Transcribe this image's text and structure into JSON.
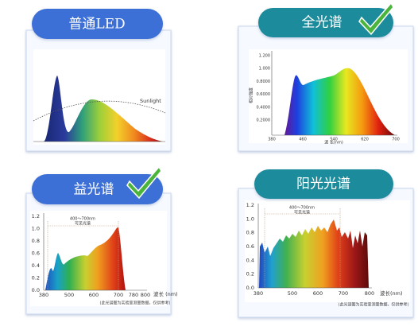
{
  "panels": [
    {
      "title": "普通LED",
      "legend_label": "Sunlight"
    },
    {
      "title": "全光谱",
      "y_axis_title": "相对强度",
      "x_axis_title": "波 长(nm)",
      "yticks": [
        "1.200",
        "1.000",
        "0.8000",
        "0.6000",
        "0.4000",
        "0.2000"
      ],
      "xticks": [
        "380",
        "460",
        "540",
        "620",
        "700"
      ]
    },
    {
      "title": "益光谱",
      "x_axis_title": "波长 (nm)",
      "annotation": "400～700nm",
      "annotation_sub": "可见光谱",
      "note": "(此光谱图为实验室测量数据，仅供参考)",
      "yticks": [
        "1.2",
        "1.0",
        "0.8",
        "0.6",
        "0.4",
        "0.2",
        "0.0"
      ],
      "xticks": [
        "380",
        "500",
        "600",
        "700",
        "780",
        "800"
      ]
    },
    {
      "title": "阳光光谱",
      "x_axis_title": "波长(nm)",
      "annotation": "400～700nm",
      "annotation_sub": "可见光谱",
      "note": "(此光谱图为实验室测量数据，仅供参考)",
      "yticks": [
        "1.2",
        "1.0",
        "0.8",
        "0.6",
        "0.4",
        "0.2",
        "0.0"
      ],
      "xticks": [
        "380",
        "500",
        "600",
        "700",
        "800"
      ]
    }
  ]
}
